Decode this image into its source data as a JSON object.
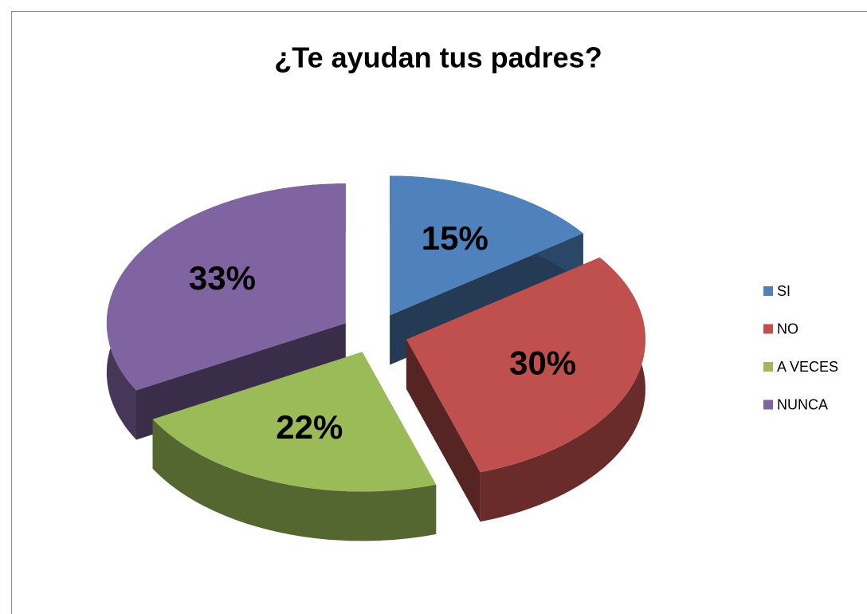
{
  "chart_data": {
    "type": "pie",
    "title": "¿Te ayudan tus padres?",
    "categories": [
      "SI",
      "NO",
      "A VECES",
      "NUNCA"
    ],
    "values": [
      15,
      30,
      22,
      33
    ],
    "value_labels": [
      "15%",
      "30%",
      "22%",
      "33%"
    ],
    "colors": [
      "#4f81bd",
      "#c0504d",
      "#9bbb59",
      "#8064a2"
    ],
    "legend": "right"
  }
}
